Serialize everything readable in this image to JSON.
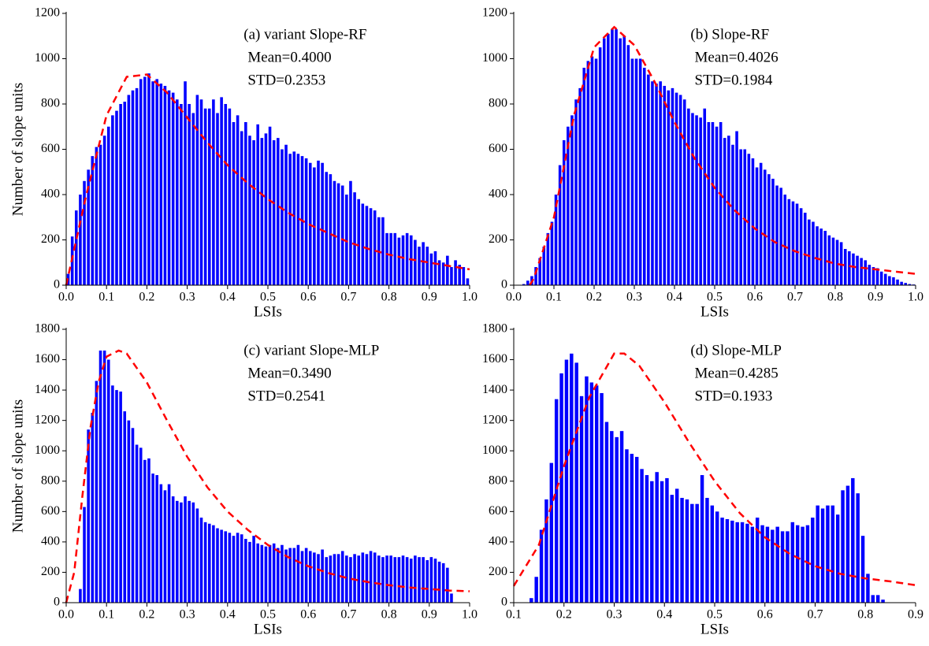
{
  "chart_data": [
    {
      "type": "histogram",
      "annotations": [
        "(a) variant Slope-RF",
        "Mean=0.4000",
        "STD=0.2353"
      ],
      "xlabel": "LSIs",
      "ylabel": "Number of slope units",
      "xlim": [
        0,
        1
      ],
      "xticks": [
        {
          "value": 0,
          "label": "0.0"
        },
        0.1,
        0.2,
        0.3,
        0.4,
        0.5,
        0.6,
        0.7,
        0.8,
        0.9,
        {
          "value": 1,
          "label": "1.0"
        }
      ],
      "ylim": [
        0,
        1200
      ],
      "yticks": [
        0,
        200,
        400,
        600,
        800,
        1000,
        1200
      ],
      "color": "#0000ff",
      "bins": [
        0,
        0.01,
        0.02,
        0.03,
        0.04,
        0.05,
        0.06,
        0.07,
        0.08,
        0.09,
        0.1,
        0.11,
        0.12,
        0.13,
        0.14,
        0.15,
        0.16,
        0.17,
        0.18,
        0.19,
        0.2,
        0.21,
        0.22,
        0.23,
        0.24,
        0.25,
        0.26,
        0.27,
        0.28,
        0.29,
        0.3,
        0.31,
        0.32,
        0.33,
        0.34,
        0.35,
        0.36,
        0.37,
        0.38,
        0.39,
        0.4,
        0.41,
        0.42,
        0.43,
        0.44,
        0.45,
        0.46,
        0.47,
        0.48,
        0.49,
        0.5,
        0.51,
        0.52,
        0.53,
        0.54,
        0.55,
        0.56,
        0.57,
        0.58,
        0.59,
        0.6,
        0.61,
        0.62,
        0.63,
        0.64,
        0.65,
        0.66,
        0.67,
        0.68,
        0.69,
        0.7,
        0.71,
        0.72,
        0.73,
        0.74,
        0.75,
        0.76,
        0.77,
        0.78,
        0.79,
        0.8,
        0.81,
        0.82,
        0.83,
        0.84,
        0.85,
        0.86,
        0.87,
        0.88,
        0.89,
        0.9,
        0.91,
        0.92,
        0.93,
        0.94,
        0.95,
        0.96,
        0.97,
        0.98,
        0.99,
        1
      ],
      "counts": [
        50,
        215,
        330,
        400,
        460,
        510,
        570,
        610,
        620,
        660,
        700,
        750,
        770,
        800,
        810,
        840,
        860,
        870,
        910,
        920,
        935,
        900,
        910,
        890,
        880,
        860,
        850,
        820,
        800,
        900,
        800,
        760,
        840,
        820,
        780,
        780,
        820,
        760,
        830,
        800,
        780,
        720,
        750,
        680,
        720,
        660,
        640,
        710,
        650,
        670,
        700,
        640,
        650,
        600,
        620,
        580,
        590,
        580,
        570,
        560,
        540,
        520,
        550,
        540,
        500,
        490,
        460,
        450,
        440,
        400,
        460,
        410,
        380,
        360,
        350,
        340,
        330,
        300,
        300,
        230,
        230,
        230,
        210,
        220,
        230,
        220,
        200,
        170,
        190,
        170,
        140,
        150,
        110,
        100,
        130,
        80,
        110,
        90,
        80,
        30
      ],
      "fit": {
        "color": "#ff0000",
        "x": [
          0,
          0.05,
          0.1,
          0.15,
          0.2,
          0.25,
          0.3,
          0.35,
          0.4,
          0.45,
          0.5,
          0.55,
          0.6,
          0.65,
          0.7,
          0.75,
          0.8,
          0.85,
          0.9,
          0.95,
          1
        ],
        "values": [
          0,
          400,
          750,
          920,
          930,
          850,
          740,
          630,
          530,
          450,
          380,
          320,
          270,
          230,
          190,
          160,
          135,
          115,
          100,
          85,
          70
        ]
      }
    },
    {
      "type": "histogram",
      "annotations": [
        "(b) Slope-RF",
        "Mean=0.4026",
        "STD=0.1984"
      ],
      "xlabel": "LSIs",
      "xlim": [
        0,
        1
      ],
      "xticks": [
        {
          "value": 0,
          "label": "0.0"
        },
        0.1,
        0.2,
        0.3,
        0.4,
        0.5,
        0.6,
        0.7,
        0.8,
        0.9,
        {
          "value": 1,
          "label": "1.0"
        }
      ],
      "ylim": [
        0,
        1200
      ],
      "yticks": [
        0,
        200,
        400,
        600,
        800,
        1000,
        1200
      ],
      "color": "#0000ff",
      "bins": [
        0,
        0.01,
        0.02,
        0.03,
        0.04,
        0.05,
        0.06,
        0.07,
        0.08,
        0.09,
        0.1,
        0.11,
        0.12,
        0.13,
        0.14,
        0.15,
        0.16,
        0.17,
        0.18,
        0.19,
        0.2,
        0.21,
        0.22,
        0.23,
        0.24,
        0.25,
        0.26,
        0.27,
        0.28,
        0.29,
        0.3,
        0.31,
        0.32,
        0.33,
        0.34,
        0.35,
        0.36,
        0.37,
        0.38,
        0.39,
        0.4,
        0.41,
        0.42,
        0.43,
        0.44,
        0.45,
        0.46,
        0.47,
        0.48,
        0.49,
        0.5,
        0.51,
        0.52,
        0.53,
        0.54,
        0.55,
        0.56,
        0.57,
        0.58,
        0.59,
        0.6,
        0.61,
        0.62,
        0.63,
        0.64,
        0.65,
        0.66,
        0.67,
        0.68,
        0.69,
        0.7,
        0.71,
        0.72,
        0.73,
        0.74,
        0.75,
        0.76,
        0.77,
        0.78,
        0.79,
        0.8,
        0.81,
        0.82,
        0.83,
        0.84,
        0.85,
        0.86,
        0.87,
        0.88,
        0.89,
        0.9,
        0.91,
        0.92,
        0.93,
        0.94,
        0.95,
        0.96,
        0.97,
        0.98,
        0.99,
        1
      ],
      "counts": [
        0,
        0,
        5,
        20,
        40,
        80,
        120,
        170,
        230,
        280,
        400,
        530,
        640,
        700,
        750,
        820,
        870,
        960,
        990,
        1010,
        1000,
        1050,
        1090,
        1110,
        1130,
        1130,
        1090,
        1100,
        1060,
        1000,
        1000,
        1000,
        960,
        930,
        900,
        890,
        900,
        880,
        860,
        870,
        850,
        840,
        820,
        780,
        760,
        750,
        740,
        780,
        720,
        720,
        700,
        720,
        650,
        660,
        620,
        680,
        600,
        600,
        580,
        560,
        520,
        540,
        510,
        490,
        470,
        440,
        430,
        400,
        380,
        370,
        360,
        340,
        320,
        290,
        280,
        260,
        250,
        240,
        220,
        210,
        200,
        190,
        160,
        150,
        140,
        130,
        120,
        110,
        90,
        80,
        75,
        60,
        50,
        40,
        35,
        25,
        15,
        10,
        5,
        3
      ],
      "fit": {
        "color": "#ff0000",
        "x": [
          0.04,
          0.05,
          0.1,
          0.15,
          0.2,
          0.25,
          0.3,
          0.35,
          0.4,
          0.45,
          0.5,
          0.55,
          0.6,
          0.65,
          0.7,
          0.75,
          0.8,
          0.85,
          0.9,
          0.95,
          1
        ],
        "values": [
          0,
          30,
          300,
          750,
          1050,
          1140,
          1060,
          900,
          720,
          560,
          430,
          330,
          250,
          190,
          150,
          120,
          95,
          80,
          70,
          60,
          50
        ]
      }
    },
    {
      "type": "histogram",
      "annotations": [
        "(c) variant Slope-MLP",
        "Mean=0.3490",
        "STD=0.2541"
      ],
      "xlabel": "LSIs",
      "ylabel": "Number of slope units",
      "xlim": [
        0,
        1
      ],
      "xticks": [
        {
          "value": 0,
          "label": "0.0"
        },
        0.1,
        0.2,
        0.3,
        0.4,
        0.5,
        0.6,
        0.7,
        0.8,
        0.9,
        {
          "value": 1,
          "label": "1.0"
        }
      ],
      "ylim": [
        0,
        1800
      ],
      "yticks": [
        0,
        200,
        400,
        600,
        800,
        1000,
        1200,
        1400,
        1600,
        1800
      ],
      "color": "#0000ff",
      "bins": [
        0,
        0.01,
        0.02,
        0.03,
        0.04,
        0.05,
        0.06,
        0.07,
        0.08,
        0.09,
        0.1,
        0.11,
        0.12,
        0.13,
        0.14,
        0.15,
        0.16,
        0.17,
        0.18,
        0.19,
        0.2,
        0.21,
        0.22,
        0.23,
        0.24,
        0.25,
        0.26,
        0.27,
        0.28,
        0.29,
        0.3,
        0.31,
        0.32,
        0.33,
        0.34,
        0.35,
        0.36,
        0.37,
        0.38,
        0.39,
        0.4,
        0.41,
        0.42,
        0.43,
        0.44,
        0.45,
        0.46,
        0.47,
        0.48,
        0.49,
        0.5,
        0.51,
        0.52,
        0.53,
        0.54,
        0.55,
        0.56,
        0.57,
        0.58,
        0.59,
        0.6,
        0.61,
        0.62,
        0.63,
        0.64,
        0.65,
        0.66,
        0.67,
        0.68,
        0.69,
        0.7,
        0.71,
        0.72,
        0.73,
        0.74,
        0.75,
        0.76,
        0.77,
        0.78,
        0.79,
        0.8,
        0.81,
        0.82,
        0.83,
        0.84,
        0.85,
        0.86,
        0.87,
        0.88,
        0.89,
        0.9,
        0.91,
        0.92,
        0.93,
        0.94,
        0.95,
        0.96,
        0.97,
        0.98,
        0.99,
        1
      ],
      "counts": [
        0,
        0,
        0,
        90,
        630,
        1140,
        1250,
        1460,
        1660,
        1660,
        1600,
        1430,
        1400,
        1390,
        1260,
        1200,
        1150,
        1040,
        1020,
        940,
        950,
        850,
        840,
        780,
        740,
        780,
        700,
        670,
        660,
        700,
        670,
        660,
        620,
        560,
        530,
        520,
        510,
        490,
        480,
        470,
        460,
        440,
        460,
        450,
        420,
        400,
        440,
        390,
        380,
        370,
        380,
        390,
        360,
        380,
        350,
        360,
        360,
        380,
        340,
        360,
        340,
        330,
        320,
        350,
        300,
        310,
        320,
        320,
        340,
        310,
        300,
        320,
        310,
        330,
        320,
        340,
        330,
        310,
        300,
        310,
        310,
        300,
        300,
        310,
        300,
        290,
        310,
        300,
        300,
        280,
        300,
        290,
        270,
        260,
        230,
        60,
        0,
        0,
        0,
        0
      ],
      "fit": {
        "color": "#ff0000",
        "x": [
          0,
          0.02,
          0.04,
          0.06,
          0.08,
          0.1,
          0.13,
          0.15,
          0.2,
          0.25,
          0.3,
          0.35,
          0.4,
          0.45,
          0.5,
          0.55,
          0.6,
          0.65,
          0.7,
          0.75,
          0.8,
          0.85,
          0.9,
          0.95,
          1
        ],
        "values": [
          0,
          200,
          700,
          1150,
          1450,
          1620,
          1660,
          1640,
          1450,
          1200,
          960,
          760,
          600,
          480,
          380,
          300,
          240,
          195,
          160,
          135,
          115,
          100,
          90,
          80,
          75
        ]
      }
    },
    {
      "type": "histogram",
      "annotations": [
        "(d) Slope-MLP",
        "Mean=0.4285",
        "STD=0.1933"
      ],
      "xlabel": "LSIs",
      "xlim": [
        0.1,
        0.9
      ],
      "xticks": [
        0.1,
        0.2,
        0.3,
        0.4,
        0.5,
        0.6,
        0.7,
        0.8,
        0.9
      ],
      "ylim": [
        0,
        1800
      ],
      "yticks": [
        0,
        200,
        400,
        600,
        800,
        1000,
        1200,
        1400,
        1600,
        1800
      ],
      "color": "#0000ff",
      "bins": [
        0.1,
        0.11,
        0.12,
        0.13,
        0.14,
        0.15,
        0.16,
        0.17,
        0.18,
        0.19,
        0.2,
        0.21,
        0.22,
        0.23,
        0.24,
        0.25,
        0.26,
        0.27,
        0.28,
        0.29,
        0.3,
        0.31,
        0.32,
        0.33,
        0.34,
        0.35,
        0.36,
        0.37,
        0.38,
        0.39,
        0.4,
        0.41,
        0.42,
        0.43,
        0.44,
        0.45,
        0.46,
        0.47,
        0.48,
        0.49,
        0.5,
        0.51,
        0.52,
        0.53,
        0.54,
        0.55,
        0.56,
        0.57,
        0.58,
        0.59,
        0.6,
        0.61,
        0.62,
        0.63,
        0.64,
        0.65,
        0.66,
        0.67,
        0.68,
        0.69,
        0.7,
        0.71,
        0.72,
        0.73,
        0.74,
        0.75,
        0.76,
        0.77,
        0.78,
        0.79,
        0.8,
        0.81,
        0.82,
        0.83,
        0.84,
        0.85,
        0.86,
        0.87,
        0.88,
        0.89,
        0.9
      ],
      "counts": [
        0,
        0,
        0,
        30,
        170,
        480,
        680,
        920,
        1340,
        1510,
        1600,
        1640,
        1580,
        1360,
        1490,
        1450,
        1430,
        1380,
        1190,
        1130,
        1090,
        1130,
        1010,
        980,
        960,
        880,
        840,
        800,
        860,
        800,
        820,
        710,
        750,
        690,
        680,
        650,
        650,
        840,
        690,
        640,
        600,
        560,
        550,
        540,
        530,
        530,
        520,
        500,
        560,
        510,
        500,
        480,
        500,
        470,
        470,
        530,
        510,
        500,
        510,
        560,
        640,
        620,
        640,
        640,
        580,
        740,
        770,
        820,
        720,
        440,
        190,
        50,
        50,
        20,
        0,
        0,
        0,
        0,
        0,
        0
      ],
      "fit": {
        "color": "#ff0000",
        "x": [
          0.1,
          0.15,
          0.2,
          0.25,
          0.3,
          0.32,
          0.35,
          0.4,
          0.45,
          0.5,
          0.55,
          0.6,
          0.65,
          0.7,
          0.75,
          0.8,
          0.85,
          0.9
        ],
        "values": [
          110,
          380,
          900,
          1350,
          1640,
          1640,
          1560,
          1320,
          1050,
          800,
          590,
          430,
          320,
          240,
          190,
          160,
          140,
          115
        ]
      }
    }
  ]
}
